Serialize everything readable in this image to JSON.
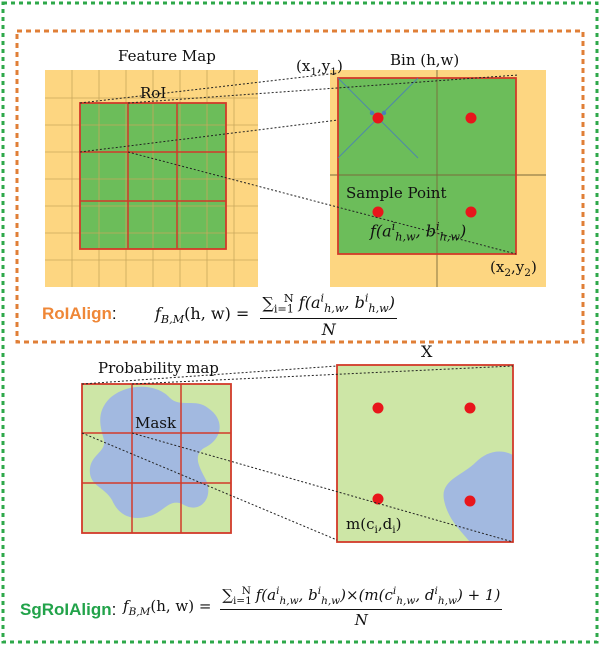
{
  "colors": {
    "outer_border": "#2ea84a",
    "inner_border": "#e07f37",
    "grid_orange": "#fdd681",
    "grid_green": "#6cbd5a",
    "grid_red": "#d23a2a",
    "light_green": "#cde6a6",
    "mask_blue": "#9fb6e3",
    "dot_red": "#e8161b",
    "roialign_label": "#ef8737",
    "sgroialign_label": "#22a34a"
  },
  "labels": {
    "feature_map": "Feature Map",
    "roi": "RoI",
    "corner_top_x": "(x",
    "corner_top_sub1": "1",
    "corner_top_y": ",y",
    "corner_top_sub2": "1",
    "corner_top_close": ")",
    "bin": "Bin (h,w)",
    "sample_point": "Sample Point",
    "corner_bot_x": "(x",
    "corner_bot_sub1": "2",
    "corner_bot_y": ",y",
    "corner_bot_sub2": "2",
    "corner_bot_close": ")",
    "probability_map": "Probability map",
    "x_label": "X",
    "mask": "Mask",
    "m_label": "m(c",
    "m_sub1": "i",
    "m_mid": ",d",
    "m_sub2": "i",
    "m_close": ")"
  },
  "methods": {
    "roialign": "RoIAlign",
    "roialign_colon": ":",
    "sgroialign": "SgRoIAlign",
    "sgroialign_colon": ":"
  },
  "formulas": {
    "sample_fn": "f(a",
    "sample_fn_sup1": "i",
    "sample_fn_sub1": "h,w",
    "sample_fn_mid": ", b",
    "sample_fn_sup2": "i",
    "sample_fn_sub2": "h,w",
    "sample_fn_close": ")",
    "f_lhs": "f",
    "f_lhs_sub": "B,M",
    "f_lhs_args": "(h, w) =",
    "roialign_num_sum": "∑",
    "roialign_num_from": "i=1",
    "roialign_num_to": "N",
    "roialign_num_body": " f(a",
    "roialign_num_sup1": "i",
    "roialign_num_sub1": "h,w",
    "roialign_num_mid": ", b",
    "roialign_num_sup2": "i",
    "roialign_num_sub2": "h,w",
    "roialign_num_close": ")",
    "den": "N",
    "sg_num_body": " f(a",
    "sg_num_sup1": "i",
    "sg_num_sub1": "h,w",
    "sg_num_mid": ", b",
    "sg_num_sup2": "i",
    "sg_num_sub2": "h,w",
    "sg_num_times": ")×(m(c",
    "sg_num_sup3": "i",
    "sg_num_sub3": "h,w",
    "sg_num_mid2": ", d",
    "sg_num_sup4": "i",
    "sg_num_sub4": "h,w",
    "sg_num_close": ") + 1)"
  }
}
